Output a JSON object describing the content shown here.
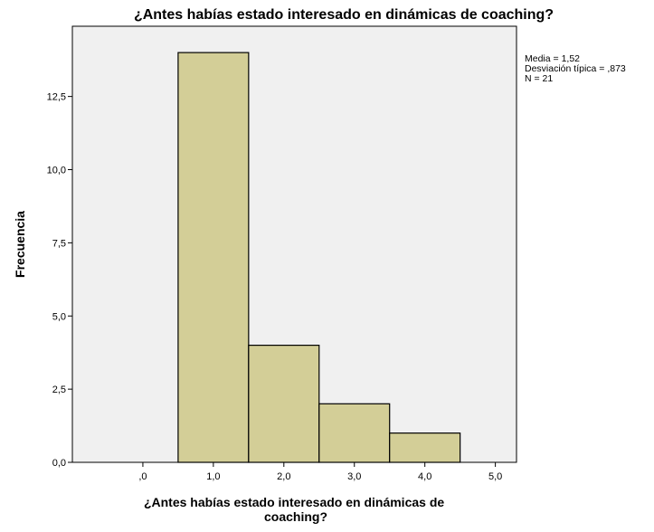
{
  "chart_data": {
    "type": "bar",
    "title": "¿Antes habías estado interesado en dinámicas de coaching?",
    "xlabel": "¿Antes habías estado interesado en dinámicas de coaching?",
    "xlabel_lines": [
      "¿Antes habías estado interesado en dinámicas de",
      "coaching?"
    ],
    "ylabel": "Frecuencia",
    "categories": [
      "1,0",
      "2,0",
      "3,0",
      "4,0"
    ],
    "bins": [
      {
        "center": 1,
        "from": 0.5,
        "to": 1.5,
        "value": 14
      },
      {
        "center": 2,
        "from": 1.5,
        "to": 2.5,
        "value": 4
      },
      {
        "center": 3,
        "from": 2.5,
        "to": 3.5,
        "value": 2
      },
      {
        "center": 4,
        "from": 3.5,
        "to": 4.5,
        "value": 1
      }
    ],
    "xlim": [
      -1,
      5.3
    ],
    "ylim": [
      0,
      14.9
    ],
    "xticks": [
      {
        "value": 0,
        "label": ",0"
      },
      {
        "value": 1,
        "label": "1,0"
      },
      {
        "value": 2,
        "label": "2,0"
      },
      {
        "value": 3,
        "label": "3,0"
      },
      {
        "value": 4,
        "label": "4,0"
      },
      {
        "value": 5,
        "label": "5,0"
      }
    ],
    "yticks": [
      {
        "value": 0,
        "label": "0,0"
      },
      {
        "value": 2.5,
        "label": "2,5"
      },
      {
        "value": 5,
        "label": "5,0"
      },
      {
        "value": 7.5,
        "label": "7,5"
      },
      {
        "value": 10,
        "label": "10,0"
      },
      {
        "value": 12.5,
        "label": "12,5"
      }
    ],
    "stats": [
      "Media = 1,52",
      "Desviación típica = ,873",
      "N = 21"
    ],
    "grid": false,
    "legend": "right",
    "colors": {
      "plot_background": "#f0f0f0",
      "bar_fill": "#d3ce97",
      "bar_stroke": "#000000"
    }
  }
}
